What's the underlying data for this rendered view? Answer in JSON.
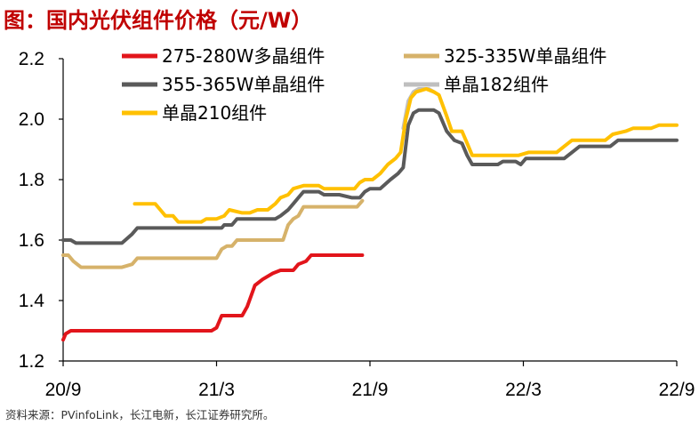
{
  "header": {
    "title": "图：国内光伏组件价格（元/W）"
  },
  "footer": {
    "source": "资料来源：PVinfoLink，长江电新，长江证券研究所。"
  },
  "chart_data": {
    "type": "line",
    "title": "图：国内光伏组件价格（元/W）",
    "xlabel": "",
    "ylabel": "",
    "xlim": [
      0,
      24
    ],
    "ylim": [
      1.2,
      2.2
    ],
    "x_ticks": [
      {
        "x": 0,
        "label": "20/9"
      },
      {
        "x": 6,
        "label": "21/3"
      },
      {
        "x": 12,
        "label": "21/9"
      },
      {
        "x": 18,
        "label": "22/3"
      },
      {
        "x": 24,
        "label": "22/9"
      }
    ],
    "y_ticks": [
      {
        "y": 1.2,
        "label": "1.2"
      },
      {
        "y": 1.4,
        "label": "1.4"
      },
      {
        "y": 1.6,
        "label": "1.6"
      },
      {
        "y": 1.8,
        "label": "1.8"
      },
      {
        "y": 2.0,
        "label": "2.0"
      },
      {
        "y": 2.2,
        "label": "2.2"
      }
    ],
    "grid": false,
    "legend_position": "top",
    "series": [
      {
        "name": "275-280W多晶组件",
        "color": "#e2151b",
        "points": [
          [
            0,
            1.27
          ],
          [
            0.1,
            1.29
          ],
          [
            0.3,
            1.3
          ],
          [
            1.0,
            1.3
          ],
          [
            3.0,
            1.3
          ],
          [
            5.8,
            1.3
          ],
          [
            6.0,
            1.31
          ],
          [
            6.2,
            1.35
          ],
          [
            6.5,
            1.35
          ],
          [
            7.0,
            1.35
          ],
          [
            7.2,
            1.38
          ],
          [
            7.5,
            1.45
          ],
          [
            7.8,
            1.47
          ],
          [
            8.2,
            1.49
          ],
          [
            8.5,
            1.5
          ],
          [
            9.0,
            1.5
          ],
          [
            9.2,
            1.52
          ],
          [
            9.5,
            1.53
          ],
          [
            9.7,
            1.55
          ],
          [
            10.0,
            1.55
          ],
          [
            11.7,
            1.55
          ]
        ]
      },
      {
        "name": "325-335W单晶组件",
        "color": "#d6b26a",
        "points": [
          [
            0,
            1.55
          ],
          [
            0.2,
            1.55
          ],
          [
            0.4,
            1.53
          ],
          [
            0.7,
            1.51
          ],
          [
            1.0,
            1.51
          ],
          [
            2.3,
            1.51
          ],
          [
            2.7,
            1.52
          ],
          [
            2.9,
            1.54
          ],
          [
            3.5,
            1.54
          ],
          [
            5.8,
            1.54
          ],
          [
            6.0,
            1.54
          ],
          [
            6.2,
            1.57
          ],
          [
            6.4,
            1.58
          ],
          [
            6.6,
            1.58
          ],
          [
            6.8,
            1.6
          ],
          [
            7.0,
            1.6
          ],
          [
            8.3,
            1.6
          ],
          [
            8.6,
            1.6
          ],
          [
            8.8,
            1.65
          ],
          [
            9.0,
            1.67
          ],
          [
            9.2,
            1.68
          ],
          [
            9.4,
            1.71
          ],
          [
            9.6,
            1.71
          ],
          [
            11.5,
            1.71
          ],
          [
            11.7,
            1.73
          ]
        ]
      },
      {
        "name": "355-365W单晶组件",
        "color": "#5a5a5a",
        "points": [
          [
            0,
            1.6
          ],
          [
            0.3,
            1.6
          ],
          [
            0.5,
            1.59
          ],
          [
            1.0,
            1.59
          ],
          [
            2.3,
            1.59
          ],
          [
            2.7,
            1.62
          ],
          [
            2.9,
            1.64
          ],
          [
            4.0,
            1.64
          ],
          [
            5.8,
            1.64
          ],
          [
            6.2,
            1.64
          ],
          [
            6.3,
            1.65
          ],
          [
            6.6,
            1.65
          ],
          [
            6.8,
            1.67
          ],
          [
            7.4,
            1.67
          ],
          [
            8.3,
            1.67
          ],
          [
            8.5,
            1.68
          ],
          [
            8.8,
            1.7
          ],
          [
            9.0,
            1.72
          ],
          [
            9.2,
            1.74
          ],
          [
            9.4,
            1.76
          ],
          [
            10.0,
            1.76
          ],
          [
            10.2,
            1.75
          ],
          [
            10.8,
            1.75
          ],
          [
            11.3,
            1.74
          ],
          [
            11.6,
            1.74
          ],
          [
            11.8,
            1.76
          ],
          [
            12.0,
            1.77
          ],
          [
            12.4,
            1.77
          ],
          [
            12.8,
            1.8
          ],
          [
            13.1,
            1.82
          ],
          [
            13.3,
            1.84
          ],
          [
            13.5,
            1.98
          ],
          [
            13.7,
            2.02
          ],
          [
            13.9,
            2.03
          ],
          [
            14.3,
            2.03
          ],
          [
            14.5,
            2.03
          ],
          [
            14.7,
            2.02
          ],
          [
            15.0,
            1.96
          ],
          [
            15.3,
            1.93
          ],
          [
            15.6,
            1.92
          ],
          [
            15.8,
            1.88
          ],
          [
            16.0,
            1.85
          ],
          [
            16.3,
            1.85
          ],
          [
            17.0,
            1.85
          ],
          [
            17.2,
            1.86
          ],
          [
            17.7,
            1.86
          ],
          [
            17.9,
            1.85
          ],
          [
            18.1,
            1.87
          ],
          [
            19.4,
            1.87
          ],
          [
            19.6,
            1.87
          ],
          [
            19.9,
            1.89
          ],
          [
            20.2,
            1.91
          ],
          [
            21.4,
            1.91
          ],
          [
            21.7,
            1.93
          ],
          [
            22.0,
            1.93
          ],
          [
            24.0,
            1.93
          ]
        ]
      },
      {
        "name": "单晶182组件",
        "color": "#bfbfbf",
        "points": [
          [
            13.3,
            1.97
          ],
          [
            13.5,
            2.06
          ],
          [
            13.7,
            2.09
          ],
          [
            13.9,
            2.1
          ],
          [
            14.3,
            2.1
          ],
          [
            14.5,
            2.09
          ]
        ]
      },
      {
        "name": "单晶210组件",
        "color": "#ffc000",
        "points": [
          [
            2.8,
            1.72
          ],
          [
            3.6,
            1.72
          ],
          [
            3.8,
            1.7
          ],
          [
            4.0,
            1.68
          ],
          [
            4.3,
            1.68
          ],
          [
            4.5,
            1.66
          ],
          [
            5.0,
            1.66
          ],
          [
            5.4,
            1.66
          ],
          [
            5.6,
            1.67
          ],
          [
            6.0,
            1.67
          ],
          [
            6.3,
            1.68
          ],
          [
            6.5,
            1.7
          ],
          [
            7.0,
            1.69
          ],
          [
            7.3,
            1.69
          ],
          [
            7.6,
            1.7
          ],
          [
            8.0,
            1.7
          ],
          [
            8.3,
            1.72
          ],
          [
            8.5,
            1.74
          ],
          [
            8.8,
            1.75
          ],
          [
            9.0,
            1.77
          ],
          [
            9.4,
            1.78
          ],
          [
            10.0,
            1.78
          ],
          [
            10.2,
            1.77
          ],
          [
            11.4,
            1.77
          ],
          [
            11.6,
            1.79
          ],
          [
            11.8,
            1.8
          ],
          [
            12.1,
            1.8
          ],
          [
            12.4,
            1.82
          ],
          [
            12.7,
            1.85
          ],
          [
            13.0,
            1.87
          ],
          [
            13.2,
            1.89
          ],
          [
            13.4,
            2.0
          ],
          [
            13.6,
            2.07
          ],
          [
            13.8,
            2.09
          ],
          [
            14.2,
            2.1
          ],
          [
            14.5,
            2.09
          ],
          [
            14.7,
            2.08
          ],
          [
            15.0,
            2.01
          ],
          [
            15.2,
            1.96
          ],
          [
            15.4,
            1.96
          ],
          [
            15.6,
            1.96
          ],
          [
            15.8,
            1.92
          ],
          [
            16.0,
            1.88
          ],
          [
            16.5,
            1.88
          ],
          [
            17.0,
            1.88
          ],
          [
            17.8,
            1.88
          ],
          [
            18.2,
            1.89
          ],
          [
            19.3,
            1.89
          ],
          [
            19.6,
            1.91
          ],
          [
            19.9,
            1.93
          ],
          [
            20.3,
            1.93
          ],
          [
            21.2,
            1.93
          ],
          [
            21.5,
            1.95
          ],
          [
            22.0,
            1.96
          ],
          [
            22.3,
            1.97
          ],
          [
            23.0,
            1.97
          ],
          [
            23.3,
            1.98
          ],
          [
            24.0,
            1.98
          ]
        ]
      }
    ],
    "legend": [
      {
        "label": "275-280W多晶组件",
        "color": "#e2151b"
      },
      {
        "label": "325-335W单晶组件",
        "color": "#d6b26a"
      },
      {
        "label": "355-365W单晶组件",
        "color": "#5a5a5a"
      },
      {
        "label": "单晶182组件",
        "color": "#bfbfbf"
      },
      {
        "label": "单晶210组件",
        "color": "#ffc000"
      }
    ]
  }
}
